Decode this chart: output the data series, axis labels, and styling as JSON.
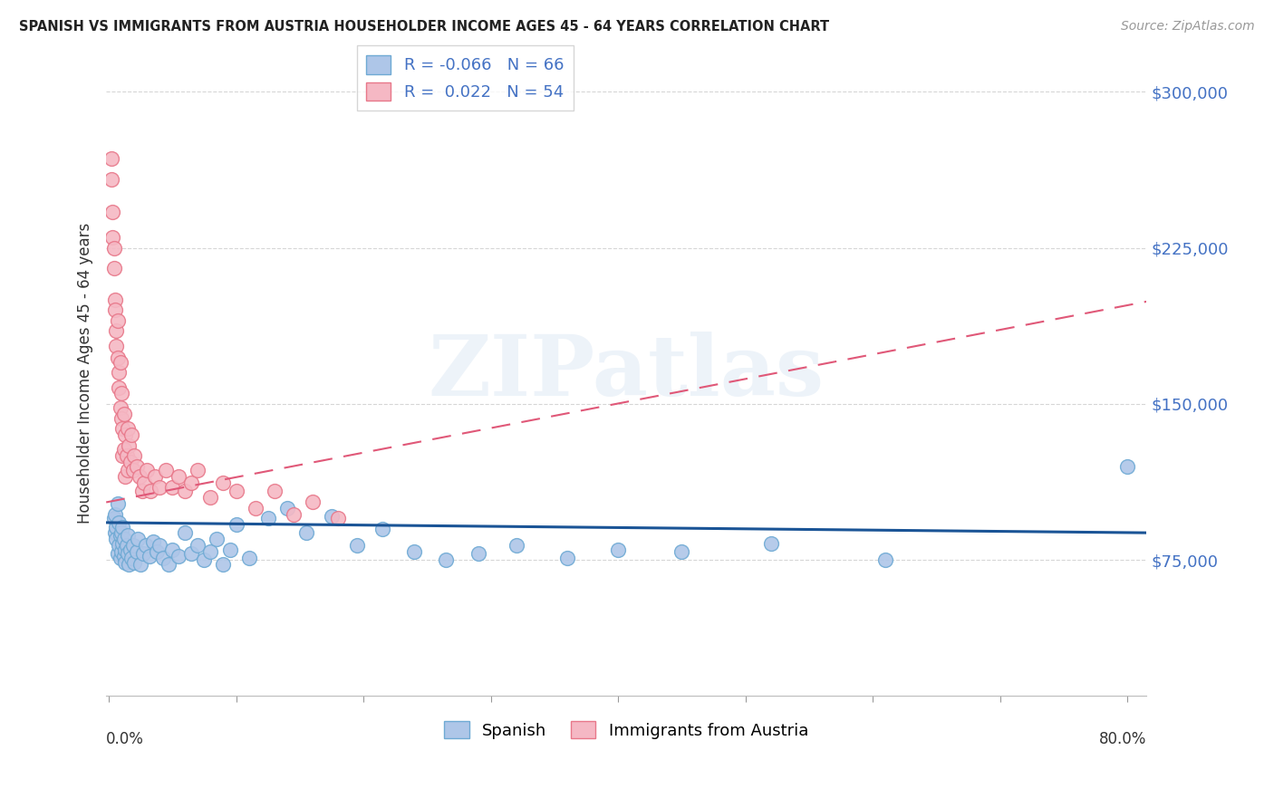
{
  "title": "SPANISH VS IMMIGRANTS FROM AUSTRIA HOUSEHOLDER INCOME AGES 45 - 64 YEARS CORRELATION CHART",
  "source": "Source: ZipAtlas.com",
  "ylabel": "Householder Income Ages 45 - 64 years",
  "ytick_labels": [
    "$75,000",
    "$150,000",
    "$225,000",
    "$300,000"
  ],
  "ytick_values": [
    75000,
    150000,
    225000,
    300000
  ],
  "ymin": 10000,
  "ymax": 320000,
  "xmin": -0.002,
  "xmax": 0.815,
  "spanish_color": "#aec6e8",
  "spanish_edge": "#6faad4",
  "austria_color": "#f5b8c4",
  "austria_edge": "#e8788a",
  "trend_spanish_color": "#1a5496",
  "trend_austria_color": "#e05878",
  "R_spanish": -0.066,
  "N_spanish": 66,
  "R_austria": 0.022,
  "N_austria": 54,
  "background_color": "#ffffff",
  "grid_color": "#cccccc",
  "watermark": "ZIPatlas",
  "spanish_x": [
    0.004,
    0.005,
    0.005,
    0.006,
    0.006,
    0.007,
    0.007,
    0.008,
    0.008,
    0.009,
    0.009,
    0.01,
    0.01,
    0.011,
    0.011,
    0.012,
    0.012,
    0.013,
    0.013,
    0.014,
    0.015,
    0.015,
    0.016,
    0.017,
    0.018,
    0.019,
    0.02,
    0.022,
    0.023,
    0.025,
    0.027,
    0.029,
    0.032,
    0.035,
    0.038,
    0.04,
    0.043,
    0.047,
    0.05,
    0.055,
    0.06,
    0.065,
    0.07,
    0.075,
    0.08,
    0.085,
    0.09,
    0.095,
    0.1,
    0.11,
    0.125,
    0.14,
    0.155,
    0.175,
    0.195,
    0.215,
    0.24,
    0.265,
    0.29,
    0.32,
    0.36,
    0.4,
    0.45,
    0.52,
    0.61,
    0.8
  ],
  "spanish_y": [
    95000,
    88000,
    97000,
    91000,
    85000,
    102000,
    78000,
    82000,
    93000,
    87000,
    76000,
    88000,
    79000,
    83000,
    91000,
    77000,
    85000,
    80000,
    74000,
    82000,
    78000,
    87000,
    73000,
    80000,
    76000,
    82000,
    74000,
    79000,
    85000,
    73000,
    78000,
    82000,
    77000,
    84000,
    79000,
    82000,
    76000,
    73000,
    80000,
    77000,
    88000,
    78000,
    82000,
    75000,
    79000,
    85000,
    73000,
    80000,
    92000,
    76000,
    95000,
    100000,
    88000,
    96000,
    82000,
    90000,
    79000,
    75000,
    78000,
    82000,
    76000,
    80000,
    79000,
    83000,
    75000,
    120000
  ],
  "austria_x": [
    0.002,
    0.002,
    0.003,
    0.003,
    0.004,
    0.004,
    0.005,
    0.005,
    0.006,
    0.006,
    0.007,
    0.007,
    0.008,
    0.008,
    0.009,
    0.009,
    0.01,
    0.01,
    0.011,
    0.011,
    0.012,
    0.012,
    0.013,
    0.013,
    0.014,
    0.015,
    0.015,
    0.016,
    0.017,
    0.018,
    0.019,
    0.02,
    0.022,
    0.024,
    0.026,
    0.028,
    0.03,
    0.033,
    0.036,
    0.04,
    0.045,
    0.05,
    0.055,
    0.06,
    0.065,
    0.07,
    0.08,
    0.09,
    0.1,
    0.115,
    0.13,
    0.145,
    0.16,
    0.18
  ],
  "austria_y": [
    268000,
    258000,
    242000,
    230000,
    215000,
    225000,
    200000,
    195000,
    185000,
    178000,
    190000,
    172000,
    165000,
    158000,
    170000,
    148000,
    155000,
    143000,
    138000,
    125000,
    145000,
    128000,
    135000,
    115000,
    125000,
    138000,
    118000,
    130000,
    122000,
    135000,
    118000,
    125000,
    120000,
    115000,
    108000,
    112000,
    118000,
    108000,
    115000,
    110000,
    118000,
    110000,
    115000,
    108000,
    112000,
    118000,
    105000,
    112000,
    108000,
    100000,
    108000,
    97000,
    103000,
    95000
  ]
}
